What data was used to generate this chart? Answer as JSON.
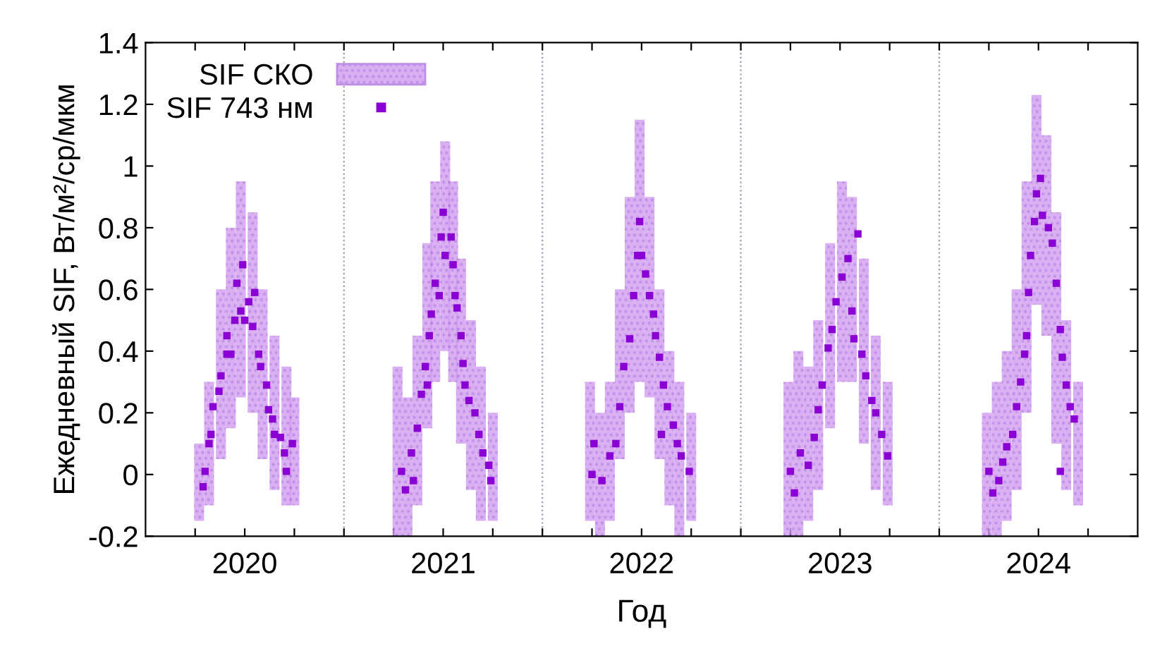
{
  "chart_data": {
    "type": "scatter",
    "xlabel": "Год",
    "ylabel": "Ежедневный SIF, Вт/м²/ср/мкм",
    "xlim": [
      2020,
      2025
    ],
    "ylim": [
      -0.2,
      1.4
    ],
    "xticks": [
      {
        "value": 2020.25,
        "label": null
      },
      {
        "value": 2020.5,
        "label": "2020"
      },
      {
        "value": 2020.75,
        "label": null
      },
      {
        "value": 2021,
        "label": null
      },
      {
        "value": 2021.25,
        "label": null
      },
      {
        "value": 2021.5,
        "label": "2021"
      },
      {
        "value": 2021.75,
        "label": null
      },
      {
        "value": 2022,
        "label": null
      },
      {
        "value": 2022.25,
        "label": null
      },
      {
        "value": 2022.5,
        "label": "2022"
      },
      {
        "value": 2022.75,
        "label": null
      },
      {
        "value": 2023,
        "label": null
      },
      {
        "value": 2023.25,
        "label": null
      },
      {
        "value": 2023.5,
        "label": "2023"
      },
      {
        "value": 2023.75,
        "label": null
      },
      {
        "value": 2024,
        "label": null
      },
      {
        "value": 2024.25,
        "label": null
      },
      {
        "value": 2024.5,
        "label": "2024"
      },
      {
        "value": 2024.75,
        "label": null
      }
    ],
    "yticks": [
      -0.2,
      0,
      0.2,
      0.4,
      0.6,
      0.8,
      1,
      1.2,
      1.4
    ],
    "grid": false,
    "legend": "top left",
    "ref_lines": [
      {
        "axis": "x",
        "value": 2021,
        "color": "#9a9ab0",
        "line_style": "dotted"
      },
      {
        "axis": "x",
        "value": 2022,
        "color": "#9a9ab0",
        "line_style": "dotted"
      },
      {
        "axis": "x",
        "value": 2023,
        "color": "#9a9ab0",
        "line_style": "dotted"
      },
      {
        "axis": "x",
        "value": 2024,
        "color": "#9a9ab0",
        "line_style": "dotted"
      }
    ],
    "series": [
      {
        "name": "SIF СКО",
        "type": "bar",
        "color": "#d29cf0",
        "x": [
          2020.27,
          2020.32,
          2020.38,
          2020.43,
          2020.48,
          2020.54,
          2020.59,
          2020.65,
          2020.71,
          2020.75,
          2021.27,
          2021.32,
          2021.37,
          2021.42,
          2021.46,
          2021.51,
          2021.55,
          2021.59,
          2021.64,
          2021.69,
          2021.75,
          2022.24,
          2022.29,
          2022.34,
          2022.39,
          2022.44,
          2022.49,
          2022.54,
          2022.59,
          2022.64,
          2022.69,
          2022.75,
          2023.24,
          2023.29,
          2023.34,
          2023.39,
          2023.45,
          2023.51,
          2023.56,
          2023.62,
          2023.68,
          2023.74,
          2024.24,
          2024.29,
          2024.34,
          2024.39,
          2024.44,
          2024.49,
          2024.54,
          2024.59,
          2024.64,
          2024.7
        ],
        "base": [
          -0.15,
          -0.1,
          0.05,
          0.15,
          0.25,
          0.2,
          0.05,
          -0.05,
          -0.1,
          -0.1,
          -0.2,
          -0.2,
          -0.1,
          0.15,
          0.3,
          0.4,
          0.3,
          0.1,
          -0.05,
          -0.15,
          -0.15,
          -0.15,
          -0.2,
          -0.15,
          0.05,
          0.2,
          0.3,
          0.25,
          0.05,
          -0.1,
          -0.2,
          -0.15,
          -0.2,
          -0.2,
          -0.15,
          -0.05,
          0.15,
          0.3,
          0.3,
          0.1,
          -0.05,
          -0.1,
          -0.2,
          -0.2,
          -0.15,
          -0.05,
          0.2,
          0.55,
          0.45,
          0.1,
          -0.05,
          -0.1
        ],
        "values": [
          0.25,
          0.4,
          0.55,
          0.65,
          0.7,
          0.65,
          0.55,
          0.5,
          0.45,
          0.35,
          0.55,
          0.45,
          0.55,
          0.6,
          0.65,
          0.68,
          0.65,
          0.6,
          0.55,
          0.5,
          0.35,
          0.45,
          0.4,
          0.45,
          0.55,
          0.7,
          0.85,
          0.65,
          0.55,
          0.5,
          0.5,
          0.35,
          0.5,
          0.6,
          0.5,
          0.55,
          0.6,
          0.65,
          0.6,
          0.6,
          0.5,
          0.4,
          0.4,
          0.5,
          0.55,
          0.65,
          0.75,
          0.68,
          0.65,
          0.75,
          0.55,
          0.4
        ]
      },
      {
        "name": "SIF 743 нм",
        "color": "#8a00d4",
        "marker": "square",
        "x": [
          2020.29,
          2020.3,
          2020.32,
          2020.33,
          2020.34,
          2020.37,
          2020.38,
          2020.41,
          2020.41,
          2020.43,
          2020.45,
          2020.46,
          2020.48,
          2020.49,
          2020.5,
          2020.52,
          2020.54,
          2020.55,
          2020.57,
          2020.58,
          2020.61,
          2020.62,
          2020.64,
          2020.65,
          2020.68,
          2020.7,
          2020.71,
          2020.74,
          2021.29,
          2021.31,
          2021.34,
          2021.35,
          2021.37,
          2021.39,
          2021.41,
          2021.42,
          2021.43,
          2021.44,
          2021.46,
          2021.48,
          2021.49,
          2021.5,
          2021.51,
          2021.54,
          2021.55,
          2021.56,
          2021.57,
          2021.59,
          2021.6,
          2021.61,
          2021.63,
          2021.66,
          2021.68,
          2021.7,
          2021.73,
          2021.74,
          2022.25,
          2022.26,
          2022.3,
          2022.34,
          2022.37,
          2022.39,
          2022.41,
          2022.44,
          2022.46,
          2022.48,
          2022.49,
          2022.5,
          2022.52,
          2022.54,
          2022.56,
          2022.57,
          2022.59,
          2022.6,
          2022.61,
          2022.63,
          2022.66,
          2022.68,
          2022.7,
          2022.74,
          2023.25,
          2023.27,
          2023.3,
          2023.34,
          2023.37,
          2023.39,
          2023.41,
          2023.44,
          2023.46,
          2023.48,
          2023.51,
          2023.54,
          2023.56,
          2023.57,
          2023.59,
          2023.61,
          2023.63,
          2023.66,
          2023.68,
          2023.71,
          2023.74,
          2024.25,
          2024.27,
          2024.3,
          2024.32,
          2024.34,
          2024.37,
          2024.39,
          2024.41,
          2024.43,
          2024.44,
          2024.45,
          2024.46,
          2024.48,
          2024.49,
          2024.51,
          2024.52,
          2024.55,
          2024.57,
          2024.59,
          2024.61,
          2024.61,
          2024.62,
          2024.64,
          2024.66,
          2024.68
        ],
        "values": [
          -0.04,
          0.01,
          0.1,
          0.13,
          0.22,
          0.27,
          0.32,
          0.39,
          0.45,
          0.39,
          0.5,
          0.62,
          0.53,
          0.68,
          0.5,
          0.56,
          0.48,
          0.59,
          0.39,
          0.35,
          0.29,
          0.21,
          0.18,
          0.13,
          0.12,
          0.07,
          0.01,
          0.1,
          0.01,
          -0.05,
          0.07,
          -0.02,
          0.15,
          0.26,
          0.35,
          0.29,
          0.45,
          0.52,
          0.62,
          0.58,
          0.77,
          0.85,
          0.71,
          0.77,
          0.68,
          0.58,
          0.54,
          0.45,
          0.36,
          0.29,
          0.24,
          0.2,
          0.13,
          0.07,
          0.03,
          -0.02,
          0.0,
          0.1,
          -0.02,
          0.06,
          0.1,
          0.22,
          0.35,
          0.44,
          0.58,
          0.71,
          0.82,
          0.71,
          0.65,
          0.58,
          0.52,
          0.45,
          0.38,
          0.13,
          0.29,
          0.22,
          0.16,
          0.1,
          0.06,
          0.01,
          0.01,
          -0.06,
          0.07,
          0.03,
          0.12,
          0.21,
          0.29,
          0.41,
          0.47,
          0.56,
          0.64,
          0.7,
          0.53,
          0.44,
          0.78,
          0.39,
          0.32,
          0.24,
          0.2,
          0.13,
          0.06,
          0.01,
          -0.06,
          -0.02,
          0.04,
          0.09,
          0.13,
          0.22,
          0.3,
          0.39,
          0.45,
          0.59,
          0.71,
          0.82,
          0.91,
          0.96,
          0.84,
          0.8,
          0.75,
          0.62,
          0.47,
          0.01,
          0.38,
          0.29,
          0.22,
          0.18
        ]
      }
    ]
  }
}
